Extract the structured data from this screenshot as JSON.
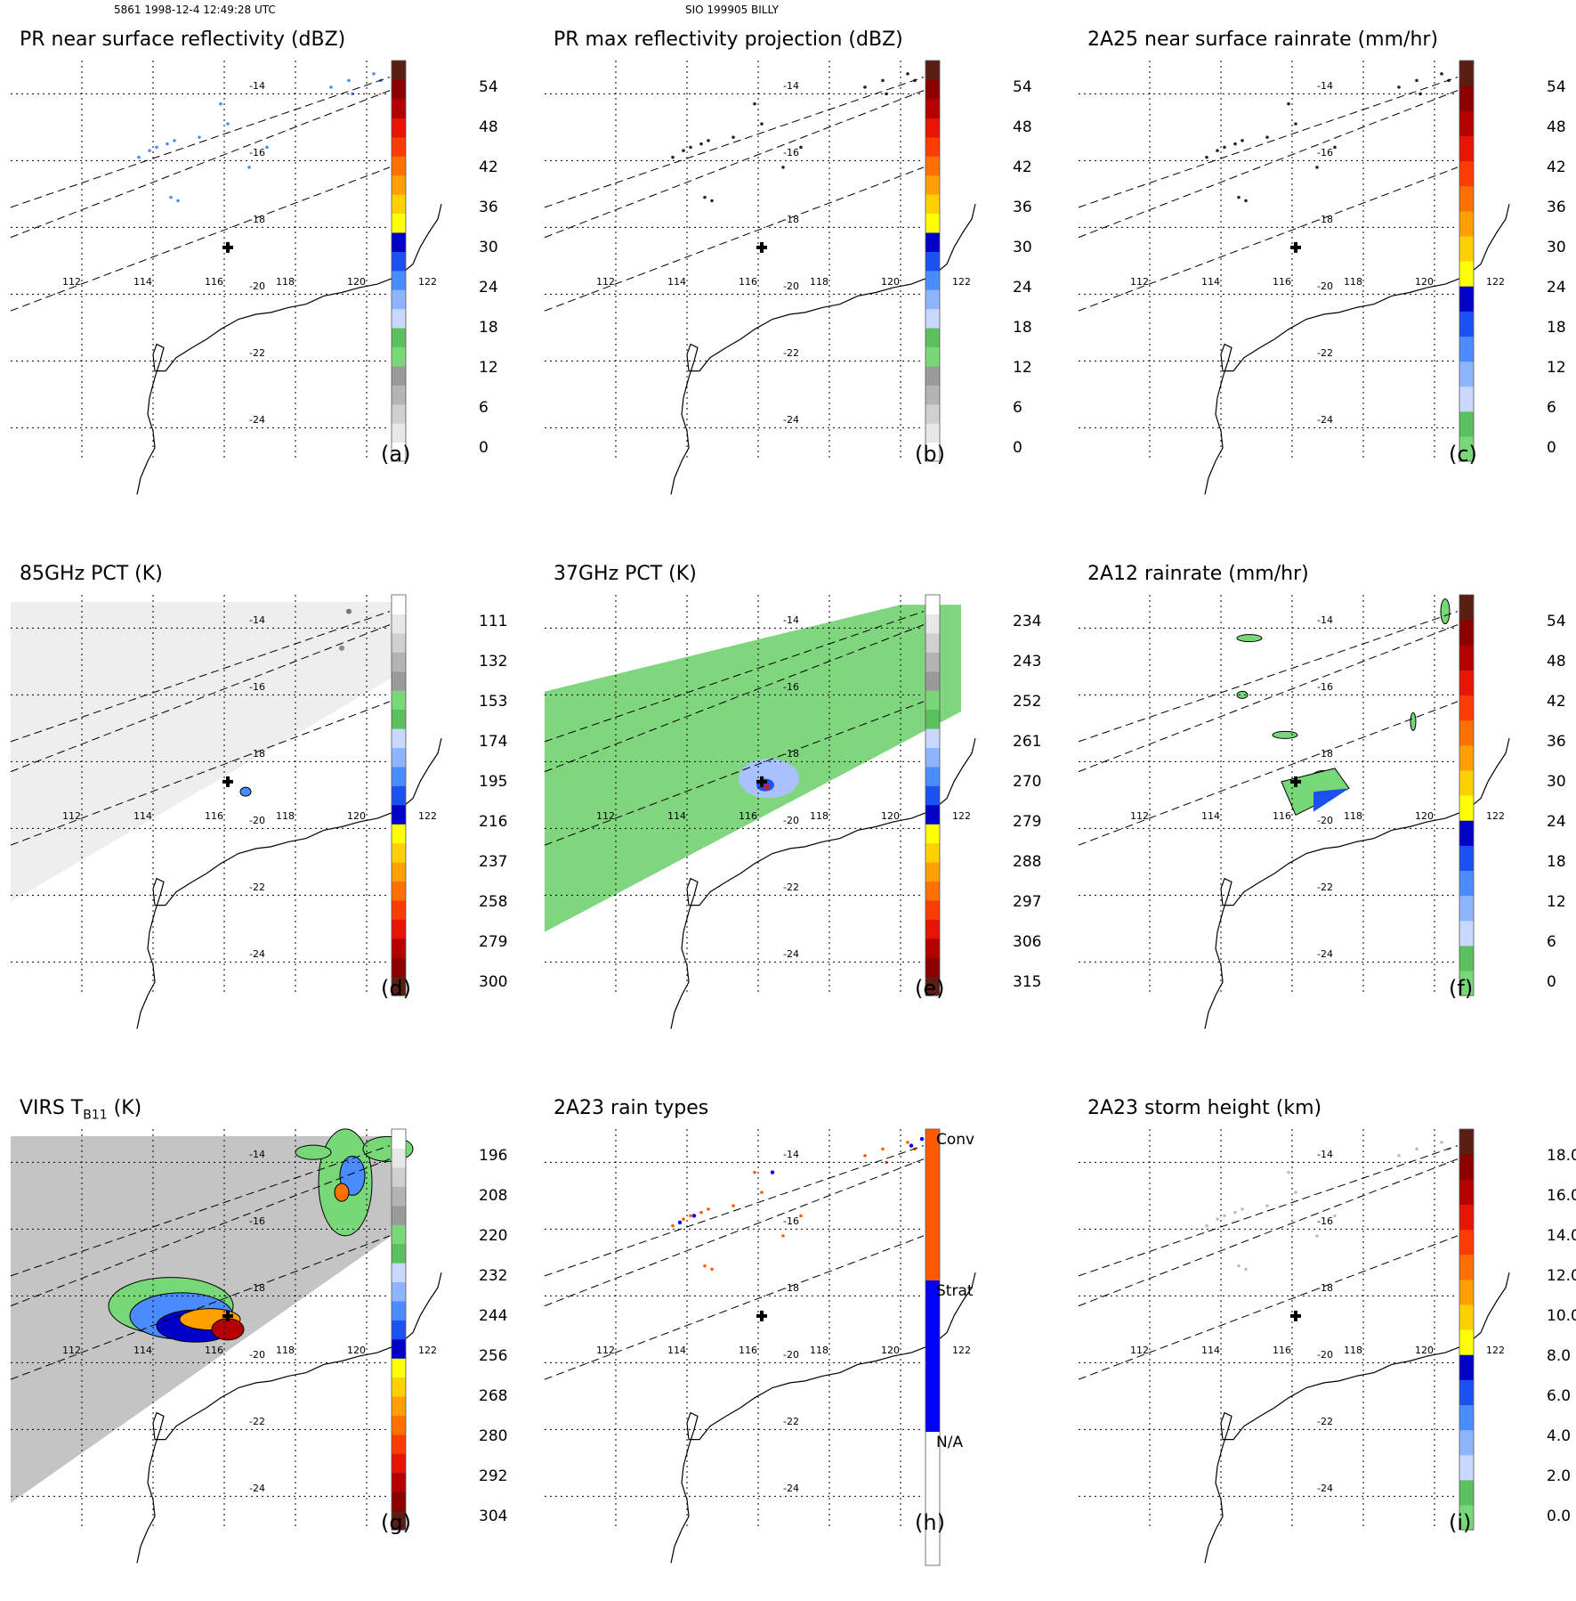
{
  "header": {
    "orbit_info": "5861 1998-12-4 12:49:28 UTC",
    "storm_info": "SIO 199905 BILLY"
  },
  "map": {
    "lon_labels": [
      "112",
      "114",
      "116",
      "118",
      "120",
      "122"
    ],
    "lat_labels": [
      "-14",
      "-16",
      "-18",
      "-20",
      "-22",
      "-24"
    ],
    "storm_center": {
      "lon": 116.1,
      "lat": -18.6
    }
  },
  "colors": {
    "dbz_scale": [
      "#ffffff",
      "#e8e8e8",
      "#d0d0d0",
      "#b4b4b4",
      "#9a9a9a",
      "#78d878",
      "#5cc05c",
      "#c8d8ff",
      "#8cb4ff",
      "#4a8cff",
      "#1c50f0",
      "#0000c8",
      "#ffff00",
      "#ffd000",
      "#ffa000",
      "#ff7000",
      "#ff3c00",
      "#e61400",
      "#b40000",
      "#8c0000",
      "#5a1e14"
    ],
    "rain_scale": [
      "#78d878",
      "#5cc05c",
      "#c8d8ff",
      "#8cb4ff",
      "#4a8cff",
      "#1c50f0",
      "#0000c8",
      "#ffff00",
      "#ffd000",
      "#ffa000",
      "#ff7000",
      "#ff3c00",
      "#e61400",
      "#b40000",
      "#8c0000",
      "#5a1e14"
    ],
    "pct_scale": [
      "#5a1e14",
      "#8c0000",
      "#b40000",
      "#e61400",
      "#ff3c00",
      "#ff7000",
      "#ffa000",
      "#ffd000",
      "#ffff00",
      "#0000c8",
      "#1c50f0",
      "#4a8cff",
      "#8cb4ff",
      "#c8d8ff",
      "#5cc05c",
      "#78d878",
      "#9a9a9a",
      "#b4b4b4",
      "#d0d0d0",
      "#e8e8e8",
      "#ffffff"
    ],
    "rain_types": [
      "#ffffff",
      "#0000ff",
      "#ff5a00"
    ]
  },
  "panels": [
    {
      "id": "a",
      "letter": "(a)",
      "title": "PR near surface reflectivity (dBZ)",
      "scale": "dbz",
      "ticks": [
        "54",
        "48",
        "42",
        "36",
        "30",
        "24",
        "18",
        "12",
        "6",
        "0"
      ]
    },
    {
      "id": "b",
      "letter": "(b)",
      "title": "PR max reflectivity projection (dBZ)",
      "scale": "dbz",
      "ticks": [
        "54",
        "48",
        "42",
        "36",
        "30",
        "24",
        "18",
        "12",
        "6",
        "0"
      ]
    },
    {
      "id": "c",
      "letter": "(c)",
      "title": "2A25 near surface rainrate (mm/hr)",
      "scale": "rain",
      "ticks": [
        "54",
        "48",
        "42",
        "36",
        "30",
        "24",
        "18",
        "12",
        "6",
        "0"
      ]
    },
    {
      "id": "d",
      "letter": "(d)",
      "title": "85GHz PCT (K)",
      "scale": "pct",
      "ticks": [
        "111",
        "132",
        "153",
        "174",
        "195",
        "216",
        "237",
        "258",
        "279",
        "300"
      ]
    },
    {
      "id": "e",
      "letter": "(e)",
      "title": "37GHz PCT (K)",
      "scale": "pct",
      "ticks": [
        "234",
        "243",
        "252",
        "261",
        "270",
        "279",
        "288",
        "297",
        "306",
        "315"
      ]
    },
    {
      "id": "f",
      "letter": "(f)",
      "title": "2A12 rainrate (mm/hr)",
      "scale": "rain",
      "ticks": [
        "54",
        "48",
        "42",
        "36",
        "30",
        "24",
        "18",
        "12",
        "6",
        "0"
      ]
    },
    {
      "id": "g",
      "letter": "(g)",
      "title_main": "VIRS T",
      "title_sub": "B11",
      "title_tail": " (K)",
      "scale": "pct",
      "ticks": [
        "196",
        "208",
        "220",
        "232",
        "244",
        "256",
        "268",
        "280",
        "292",
        "304"
      ]
    },
    {
      "id": "h",
      "letter": "(h)",
      "title": "2A23 rain types",
      "scale": "types",
      "ticks": [
        "Conv",
        "Strat",
        "N/A"
      ]
    },
    {
      "id": "i",
      "letter": "(i)",
      "title": "2A23 storm height (km)",
      "scale": "rain",
      "ticks": [
        "18.0",
        "16.0",
        "14.0",
        "12.0",
        "10.0",
        "8.0",
        "6.0",
        "4.0",
        "2.0",
        "0.0"
      ]
    }
  ]
}
